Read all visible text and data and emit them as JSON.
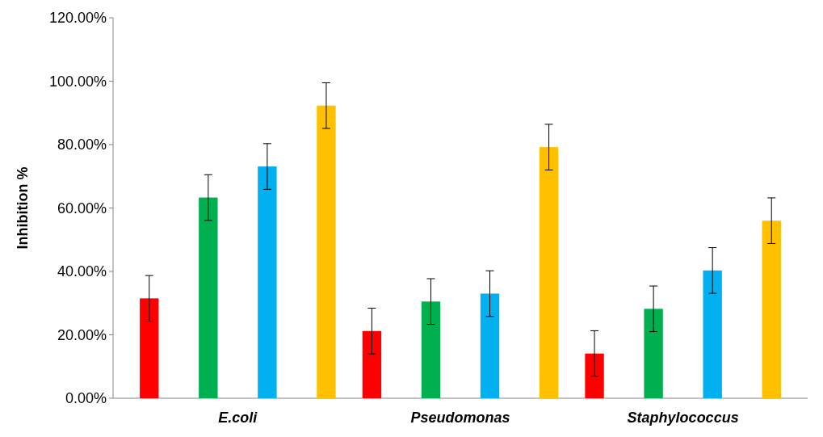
{
  "chart_data": {
    "type": "bar",
    "ylabel": "Inhibition %",
    "categories": [
      "E.coli",
      "Pseudomonas",
      "Staphylococcus"
    ],
    "series": [
      {
        "color": "#ff0000",
        "values": [
          31.5,
          21.2,
          14.1
        ],
        "errors": [
          7.2,
          7.2,
          7.2
        ]
      },
      {
        "color": "#00b050",
        "values": [
          63.3,
          30.5,
          28.2
        ],
        "errors": [
          7.2,
          7.2,
          7.2
        ]
      },
      {
        "color": "#00b0f0",
        "values": [
          73.1,
          33,
          40.3
        ],
        "errors": [
          7.2,
          7.2,
          7.2
        ]
      },
      {
        "color": "#ffc000",
        "values": [
          92.3,
          79.2,
          56
        ],
        "errors": [
          7.2,
          7.2,
          7.2
        ]
      }
    ],
    "ylim": [
      0,
      120
    ],
    "yticks": [
      {
        "value": 0,
        "label": "0.00%"
      },
      {
        "value": 20,
        "label": "20.00%"
      },
      {
        "value": 40,
        "label": "40.00%"
      },
      {
        "value": 60,
        "label": "60.00%"
      },
      {
        "value": 80,
        "label": "80.00%"
      },
      {
        "value": 100,
        "label": "100.00%"
      },
      {
        "value": 120,
        "label": "120.00%"
      }
    ]
  }
}
